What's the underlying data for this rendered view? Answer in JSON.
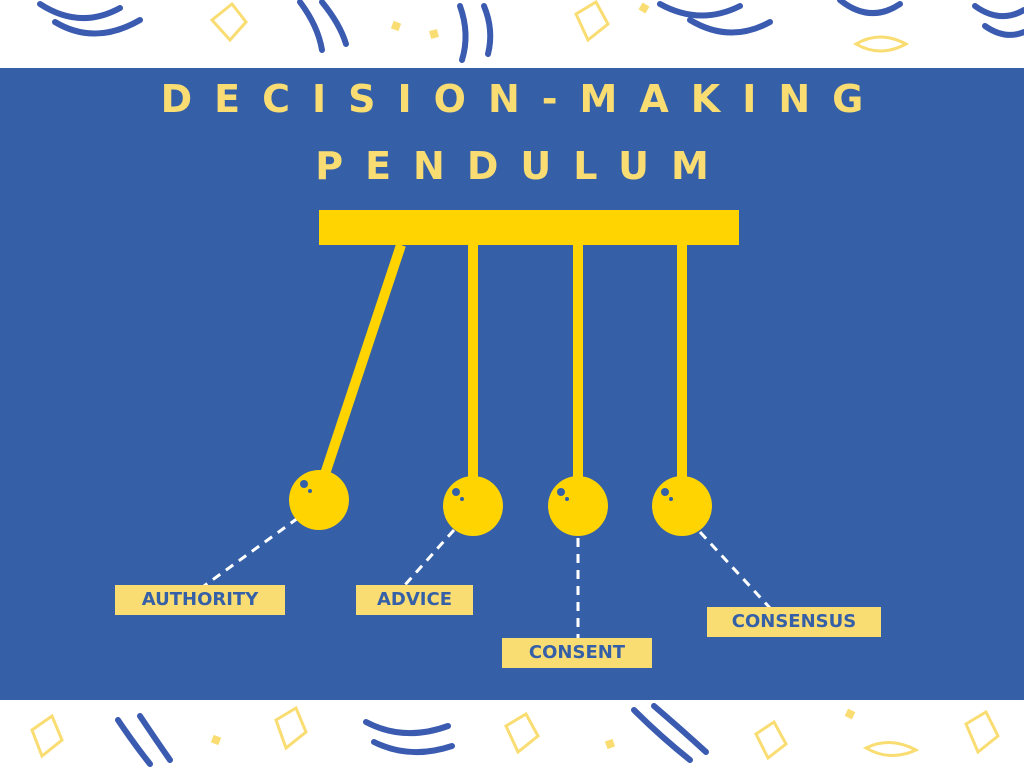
{
  "title": {
    "line1": "DECISION-MAKING",
    "line2": "PENDULUM"
  },
  "pendulum": {
    "labels": [
      {
        "id": "authority",
        "text": "AUTHORITY"
      },
      {
        "id": "advice",
        "text": "ADVICE"
      },
      {
        "id": "consent",
        "text": "CONSENT"
      },
      {
        "id": "consensus",
        "text": "CONSENSUS"
      }
    ]
  },
  "colors": {
    "background": "#3560A8",
    "accent": "#F9DD72",
    "pendulum": "#FFD400",
    "decoration": "#3A5BB0",
    "line": "#FFFFFF"
  }
}
